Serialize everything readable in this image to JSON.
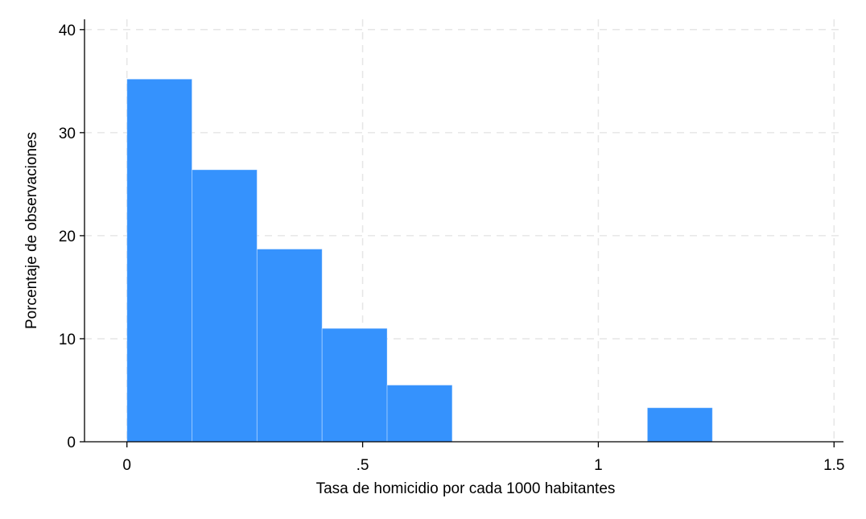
{
  "chart_data": {
    "type": "bar",
    "title": "",
    "xlabel": "Tasa de homicidio por cada 1000 habitantes",
    "ylabel": "Porcentaje de observaciones",
    "xlim": [
      -0.09,
      1.52
    ],
    "ylim": [
      0,
      41
    ],
    "x_ticks": [
      {
        "value": 0,
        "label": "0"
      },
      {
        "value": 0.5,
        "label": ".5"
      },
      {
        "value": 1,
        "label": "1"
      },
      {
        "value": 1.5,
        "label": "1.5"
      }
    ],
    "y_ticks": [
      {
        "value": 0,
        "label": "0"
      },
      {
        "value": 10,
        "label": "10"
      },
      {
        "value": 20,
        "label": "20"
      },
      {
        "value": 30,
        "label": "30"
      },
      {
        "value": 40,
        "label": "40"
      }
    ],
    "bins": [
      {
        "start": 0.0,
        "end": 0.138,
        "value": 35.2
      },
      {
        "start": 0.138,
        "end": 0.276,
        "value": 26.4
      },
      {
        "start": 0.276,
        "end": 0.414,
        "value": 18.7
      },
      {
        "start": 0.414,
        "end": 0.552,
        "value": 11.0
      },
      {
        "start": 0.552,
        "end": 0.69,
        "value": 5.5
      },
      {
        "start": 1.104,
        "end": 1.242,
        "value": 3.3
      }
    ],
    "grid": true,
    "bar_color": "#3592fd"
  }
}
